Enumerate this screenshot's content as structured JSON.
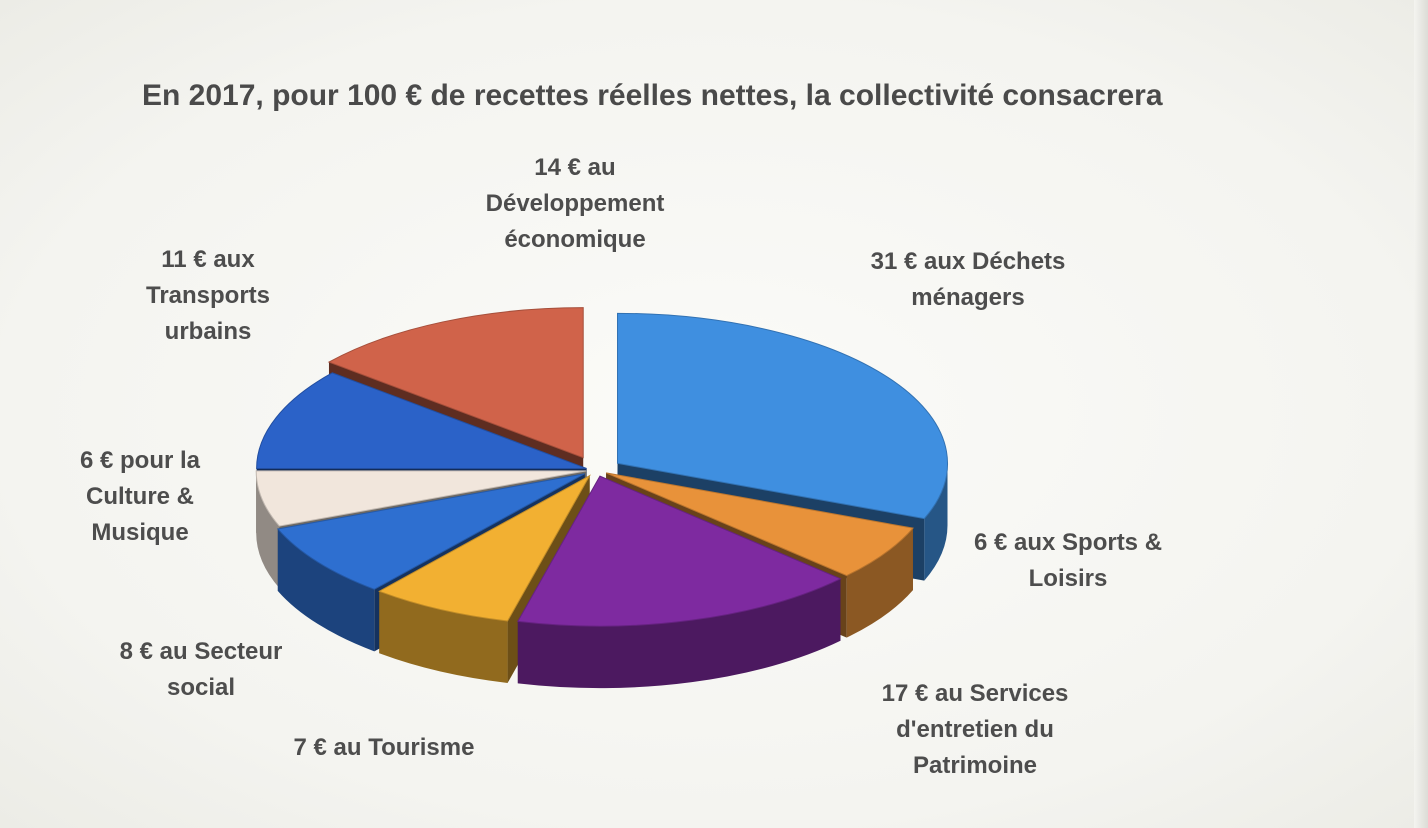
{
  "chart_data": {
    "type": "pie",
    "title": "En 2017, pour 100 € de recettes réelles nettes, la collectivité consacrera",
    "slices": [
      {
        "label": "31 € aux Déchets\nménagers",
        "value": 31,
        "color": "#3f8fe0"
      },
      {
        "label": "6 € aux Sports &\nLoisirs",
        "value": 6,
        "color": "#e8923a"
      },
      {
        "label": "17 € au Services\nd'entretien du\nPatrimoine",
        "value": 17,
        "color": "#7e2aa0"
      },
      {
        "label": "7 € au Tourisme",
        "value": 7,
        "color": "#f2b032"
      },
      {
        "label": "8 € au Secteur\nsocial",
        "value": 8,
        "color": "#2e6fd0"
      },
      {
        "label": "6 € pour la\nCulture &\nMusique",
        "value": 6,
        "color": "#f1e6dc"
      },
      {
        "label": "11 € aux\nTransports\nurbains",
        "value": 11,
        "color": "#2b62c8"
      },
      {
        "label": "14 € au\nDéveloppement\néconomique",
        "value": 14,
        "color": "#d0634a"
      }
    ],
    "legend": "none",
    "grid": false
  }
}
